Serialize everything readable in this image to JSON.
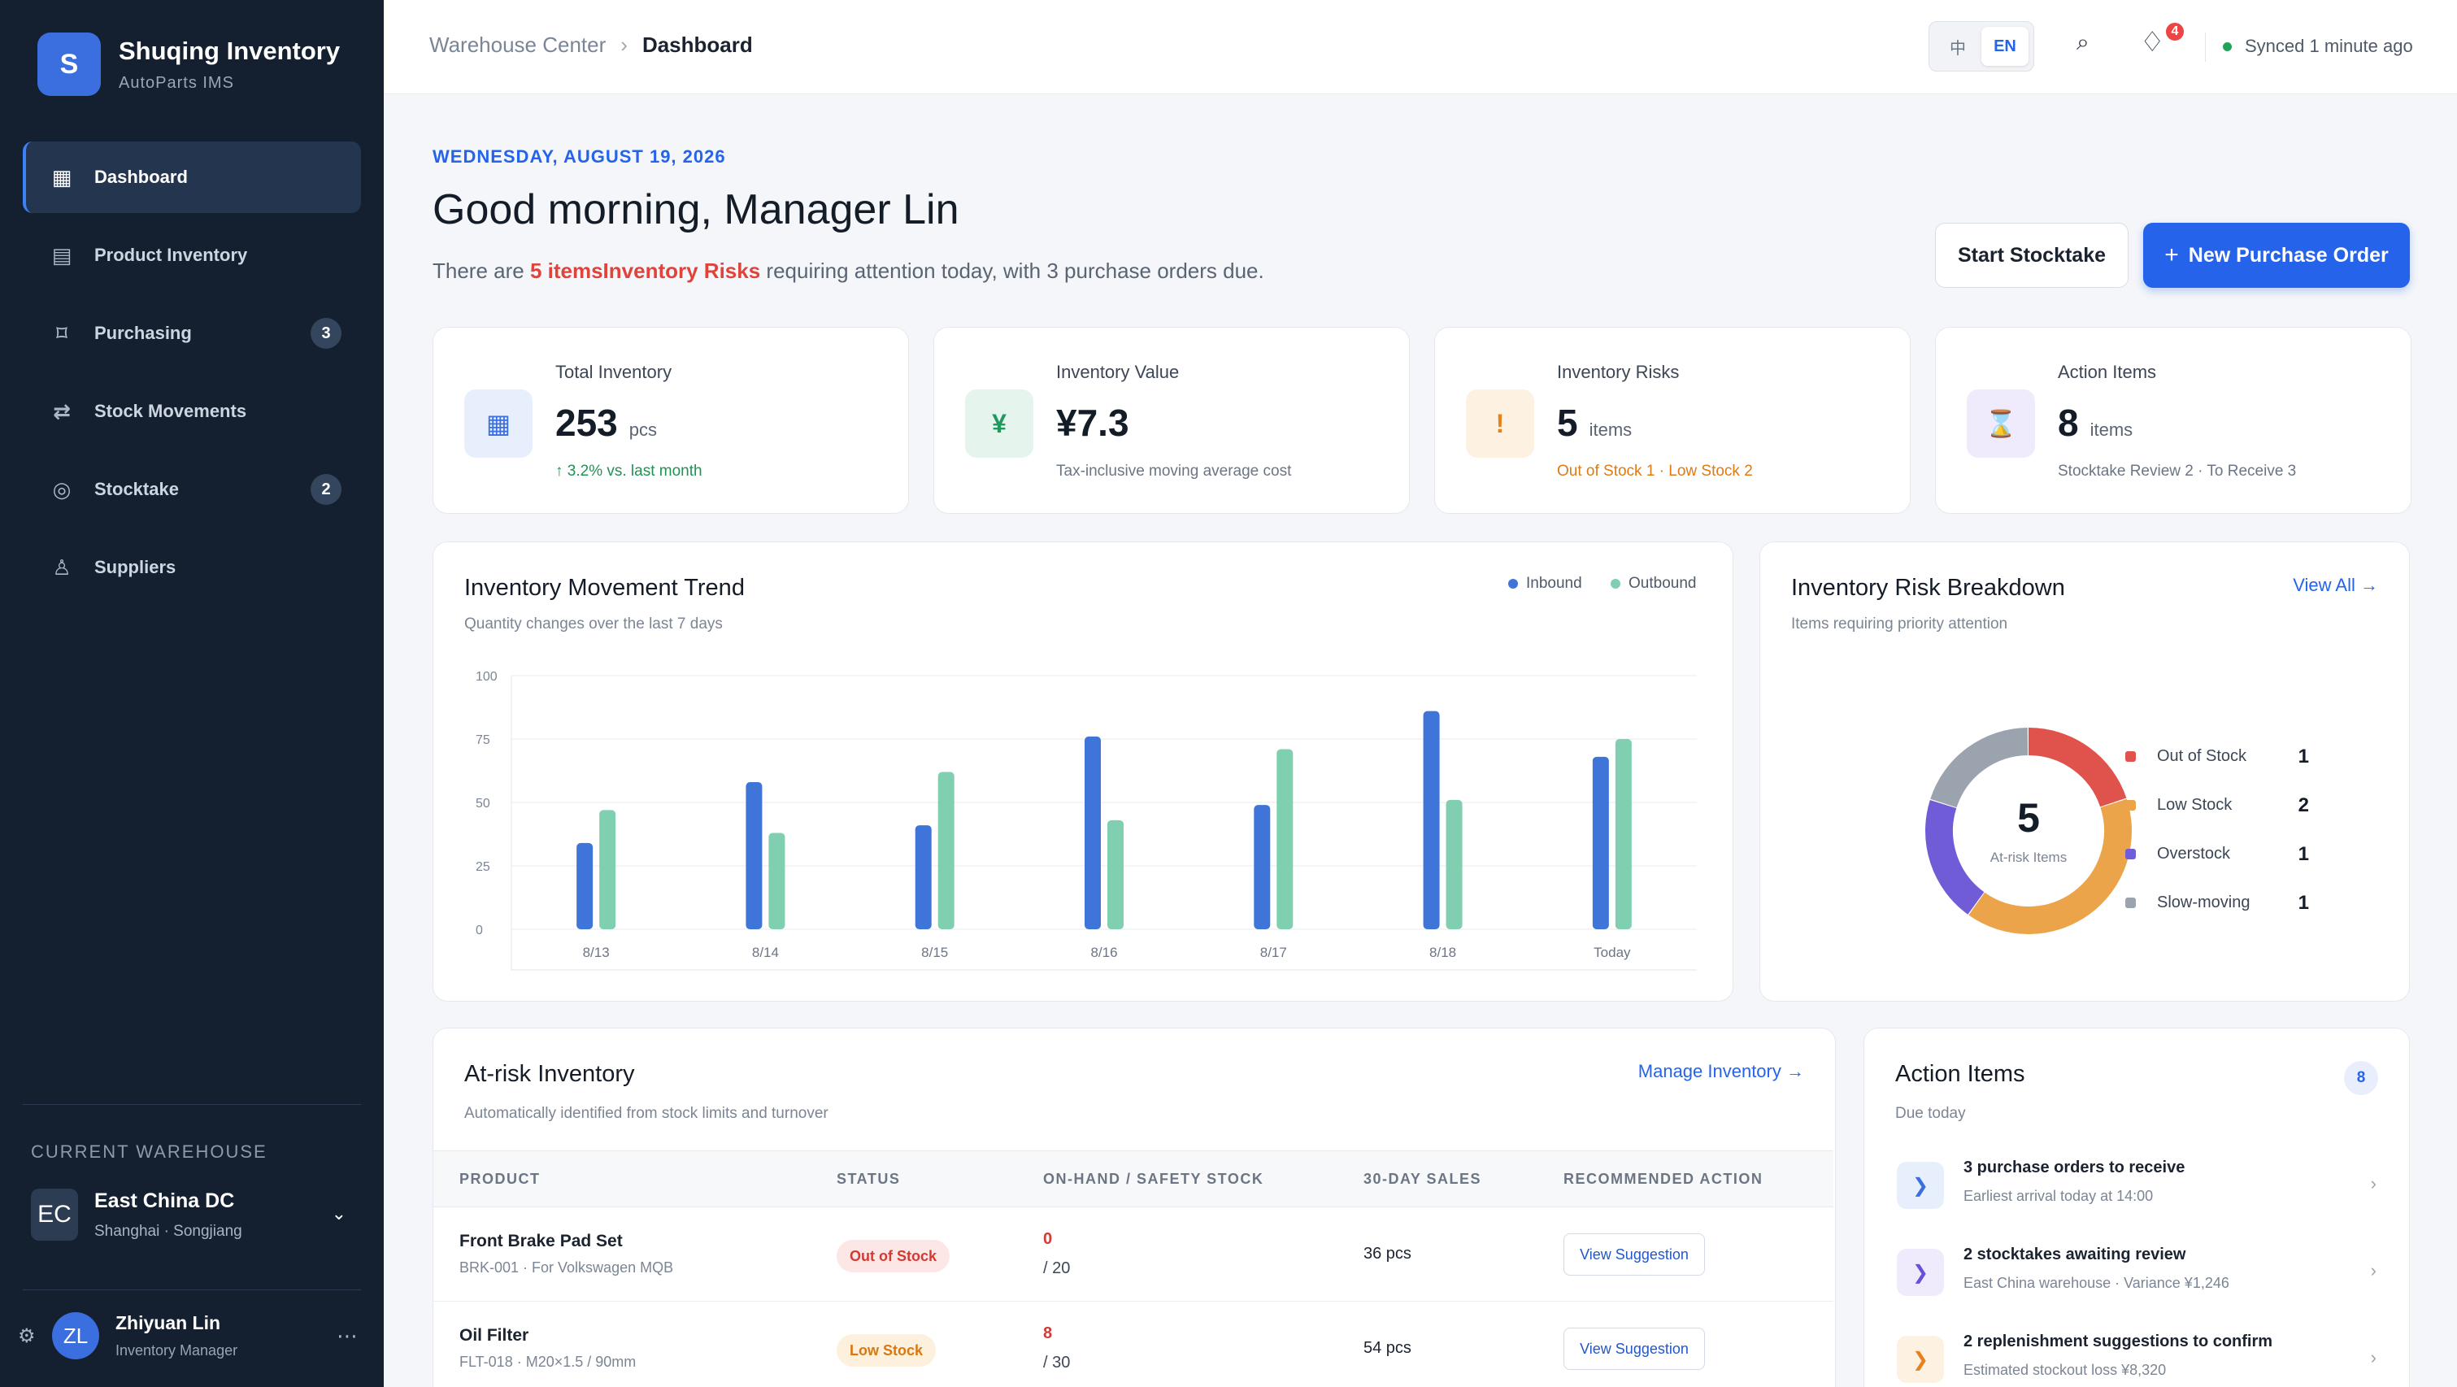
{
  "brand": {
    "logo": "S",
    "name": "Shuqing Inventory",
    "sub": "AutoParts IMS"
  },
  "nav": [
    {
      "label": "Dashboard",
      "icon": "dashboard-icon",
      "glyph": "▦",
      "badge": "",
      "active": true
    },
    {
      "label": "Product Inventory",
      "icon": "inventory-icon",
      "glyph": "▤",
      "badge": "",
      "active": false
    },
    {
      "label": "Purchasing",
      "icon": "purchasing-icon",
      "glyph": "⌑",
      "badge": "3",
      "active": false
    },
    {
      "label": "Stock Movements",
      "icon": "transfer-icon",
      "glyph": "⇄",
      "badge": "",
      "active": false
    },
    {
      "label": "Stocktake",
      "icon": "stocktake-icon",
      "glyph": "◎",
      "badge": "2",
      "active": false
    },
    {
      "label": "Suppliers",
      "icon": "supplier-icon",
      "glyph": "♙",
      "badge": "",
      "active": false
    }
  ],
  "warehouse": {
    "label": "CURRENT WAREHOUSE",
    "avatar": "EC",
    "name": "East China DC",
    "location": "Shanghai · Songjiang"
  },
  "user": {
    "avatar": "ZL",
    "name": "Zhiyuan Lin",
    "role": "Inventory Manager"
  },
  "header": {
    "breadcrumb_root": "Warehouse Center",
    "breadcrumb_current": "Dashboard",
    "lang_zh": "中",
    "lang_en": "EN",
    "notification_count": "4",
    "sync_status": "Synced 1 minute ago"
  },
  "greeting": {
    "date": "WEDNESDAY, AUGUST 19, 2026",
    "title": "Good morning, Manager Lin",
    "summary_before": "There are ",
    "summary_highlight": "5 itemsInventory Risks",
    "summary_after": " requiring attention today, with 3 purchase orders due.",
    "start_stocktake": "Start Stocktake",
    "new_po": "New Purchase Order"
  },
  "stats": [
    {
      "label": "Total Inventory",
      "value": "253",
      "unit": "pcs",
      "note": "↑ 3.2% vs. last month",
      "icon": "inventory-grid-icon",
      "glyph": "▦",
      "bg": "#e8effc",
      "fg": "#3b6fe0",
      "note_color": "#1f9254"
    },
    {
      "label": "Inventory Value",
      "value": "¥7.3",
      "unit": "",
      "note": "Tax-inclusive moving average cost",
      "icon": "yen-icon",
      "glyph": "¥",
      "bg": "#e5f5ee",
      "fg": "#1f9a5c",
      "note_color": "#6b7584"
    },
    {
      "label": "Inventory Risks",
      "value": "5",
      "unit": "items",
      "note": "Out of Stock 1 · Low Stock 2",
      "icon": "warning-icon",
      "glyph": "!",
      "bg": "#fdf1e2",
      "fg": "#e7821a",
      "note_color": "#e07a12"
    },
    {
      "label": "Action Items",
      "value": "8",
      "unit": "items",
      "note": "Stocktake Review 2 · To Receive 3",
      "icon": "hourglass-icon",
      "glyph": "⌛",
      "bg": "#efeafc",
      "fg": "#6b4fd6",
      "note_color": "#6b7584"
    }
  ],
  "trend": {
    "title": "Inventory Movement Trend",
    "subtitle": "Quantity changes over the last 7 days",
    "legend_in": "Inbound",
    "legend_out": "Outbound"
  },
  "chart_data": {
    "type": "bar",
    "categories": [
      "8/13",
      "8/14",
      "8/15",
      "8/16",
      "8/17",
      "8/18",
      "Today"
    ],
    "series": [
      {
        "name": "Inbound",
        "color": "#3f74d8",
        "values": [
          34,
          58,
          41,
          76,
          49,
          86,
          68
        ]
      },
      {
        "name": "Outbound",
        "color": "#7fcfb0",
        "values": [
          47,
          38,
          62,
          43,
          71,
          51,
          75
        ]
      }
    ],
    "yticks": [
      "0",
      "25",
      "50",
      "75",
      "100"
    ],
    "ylim": [
      0,
      100
    ],
    "grid": true
  },
  "risk": {
    "title": "Inventory Risk Breakdown",
    "subtitle": "Items requiring priority attention",
    "link": "View All →",
    "total": "5",
    "center_label": "At-risk Items",
    "items": [
      {
        "label": "Out of Stock",
        "count": "1",
        "value": 1,
        "color": "#e0524c"
      },
      {
        "label": "Low Stock",
        "count": "2",
        "value": 2,
        "color": "#eba44a"
      },
      {
        "label": "Overstock",
        "count": "1",
        "value": 1,
        "color": "#6f5cd6"
      },
      {
        "label": "Slow-moving",
        "count": "1",
        "value": 1,
        "color": "#9aa3ae"
      }
    ]
  },
  "atrisk": {
    "title": "At-risk Inventory",
    "subtitle": "Automatically identified from stock limits and turnover",
    "link": "Manage Inventory →",
    "columns": [
      "PRODUCT",
      "STATUS",
      "ON-HAND / SAFETY STOCK",
      "30-DAY SALES",
      "RECOMMENDED ACTION"
    ],
    "rows": [
      {
        "name": "Front Brake Pad Set",
        "sku": "BRK-001 · For Volkswagen MQB",
        "status": "Out of Stock",
        "status_bg": "#fde7e6",
        "status_fg": "#d13b33",
        "onhand": "0",
        "onhand_color": "#d13b33",
        "safety": "/ 20",
        "sales": "36 pcs",
        "action": "View Suggestion"
      },
      {
        "name": "Oil Filter",
        "sku": "FLT-018 · M20×1.5 / 90mm",
        "status": "Low Stock",
        "status_bg": "#fdf0dc",
        "status_fg": "#d9780f",
        "onhand": "8",
        "onhand_color": "#d13b33",
        "safety": "/ 30",
        "sales": "54 pcs",
        "action": "View Suggestion"
      }
    ]
  },
  "actions": {
    "title": "Action Items",
    "subtitle": "Due today",
    "count": "8",
    "items": [
      {
        "title": "3 purchase orders to receive",
        "sub": "Earliest arrival today at 14:00",
        "glyph": "❯",
        "bg": "#e8effc",
        "fg": "#3b6fe0"
      },
      {
        "title": "2 stocktakes awaiting review",
        "sub": "East China warehouse · Variance ¥1,246",
        "glyph": "❯",
        "bg": "#efeafc",
        "fg": "#6b4fd6"
      },
      {
        "title": "2 replenishment suggestions to confirm",
        "sub": "Estimated stockout loss ¥8,320",
        "glyph": "❯",
        "bg": "#fdf1e2",
        "fg": "#e7821a"
      }
    ]
  }
}
